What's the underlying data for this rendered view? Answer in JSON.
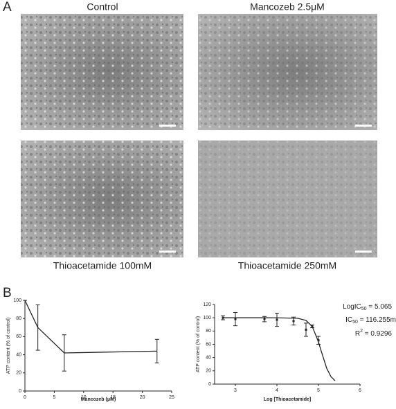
{
  "panels": [
    "A",
    "B"
  ],
  "images": [
    {
      "label": "Control"
    },
    {
      "label": "Mancozeb 2.5μM"
    },
    {
      "label": "Thioacetamide 100mM"
    },
    {
      "label": "Thioacetamide 250mM"
    }
  ],
  "chart_data": [
    {
      "type": "line",
      "x_label": "Mancozeb (μM)",
      "y_label": "ATP content (% of control)",
      "x": [
        0,
        2.2,
        6.7,
        22.5
      ],
      "series": [
        {
          "color": "#222222",
          "values": [
            100,
            70,
            42,
            44
          ],
          "errors": [
            0,
            25,
            20,
            13
          ]
        }
      ],
      "xlim": [
        0,
        25
      ],
      "ylim": [
        0,
        100
      ],
      "xticks": [
        0,
        5,
        10,
        15,
        20,
        25
      ],
      "yticks": [
        0,
        20,
        40,
        60,
        80,
        100
      ]
    },
    {
      "type": "scatter",
      "x_label": "Log [Thioacetamide]",
      "y_label": "ATP content (% of control)",
      "x": [
        2.7,
        3.0,
        3.7,
        4.0,
        4.4,
        4.7,
        4.85,
        5.0
      ],
      "series": [
        {
          "color": "#222222",
          "values": [
            100,
            98,
            98,
            97,
            95,
            82,
            87,
            66
          ],
          "errors": [
            3,
            10,
            4,
            10,
            6,
            10,
            2,
            6
          ]
        }
      ],
      "fit": {
        "x": [
          2.7,
          3.5,
          4.0,
          4.5,
          4.7,
          4.85,
          5.0,
          5.065,
          5.2,
          5.3,
          5.4
        ],
        "values": [
          100,
          100,
          99.9,
          99.3,
          96,
          86.8,
          63.8,
          50,
          23.5,
          11.3,
          5.1
        ]
      },
      "xlim": [
        2.5,
        6
      ],
      "ylim": [
        0,
        120
      ],
      "xticks": [
        3,
        4,
        5,
        6
      ],
      "yticks": [
        0,
        20,
        40,
        60,
        80,
        100,
        120
      ],
      "annotations": [
        [
          {
            "text": "LogIC"
          },
          {
            "text": "50",
            "style": "sub"
          },
          {
            "text": " = 5.065"
          }
        ],
        [
          {
            "text": "IC"
          },
          {
            "text": "50",
            "style": "sub"
          },
          {
            "text": " = 116.255m"
          }
        ],
        [
          {
            "text": "R"
          },
          {
            "text": "2",
            "style": "sup"
          },
          {
            "text": " = 0.9296"
          }
        ]
      ]
    }
  ]
}
